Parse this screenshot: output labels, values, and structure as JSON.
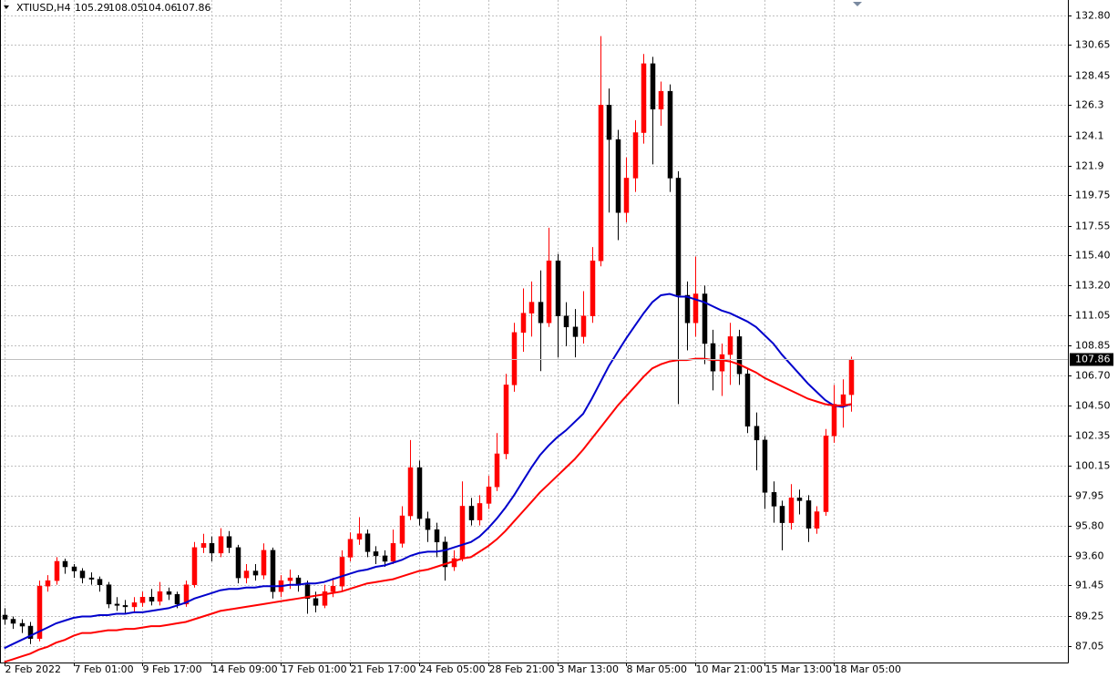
{
  "chart_data": {
    "type": "candlestick",
    "symbol": "XTIUSD,H4",
    "header_values": [
      105.29,
      108.05,
      104.06,
      107.86
    ],
    "up_color": "#ff0000",
    "down_color": "#000000",
    "grid": true,
    "current_price": 107.86,
    "xlim": [
      -1,
      246.2
    ],
    "ylim": [
      85.86,
      133.92
    ],
    "xticks": [
      {
        "value": 0,
        "label": "2 Feb 2022"
      },
      {
        "value": 16,
        "label": "7 Feb 01:00"
      },
      {
        "value": 32,
        "label": "9 Feb 17:00"
      },
      {
        "value": 48,
        "label": "14 Feb 09:00"
      },
      {
        "value": 64,
        "label": "17 Feb 01:00"
      },
      {
        "value": 80,
        "label": "21 Feb 17:00"
      },
      {
        "value": 96,
        "label": "24 Feb 05:00"
      },
      {
        "value": 112,
        "label": "28 Feb 21:00"
      },
      {
        "value": 128,
        "label": "3 Mar 13:00"
      },
      {
        "value": 144,
        "label": "8 Mar 05:00"
      },
      {
        "value": 160,
        "label": "10 Mar 21:00"
      },
      {
        "value": 176,
        "label": "15 Mar 13:00"
      },
      {
        "value": 192,
        "label": "18 Mar 05:00"
      }
    ],
    "yticks": [
      {
        "value": 132.8,
        "label": "132.80"
      },
      130.65,
      128.45,
      126.3,
      124.1,
      121.9,
      119.75,
      117.55,
      {
        "value": 115.4,
        "label": "115.40"
      },
      {
        "value": 113.2,
        "label": "113.20"
      },
      111.05,
      108.85,
      {
        "value": 106.7,
        "label": "106.70"
      },
      {
        "value": 104.5,
        "label": "104.50"
      },
      102.35,
      100.15,
      97.95,
      {
        "value": 95.8,
        "label": "95.80"
      },
      {
        "value": 93.6,
        "label": "93.60"
      },
      91.45,
      89.25,
      87.05
    ],
    "x": [
      0,
      2,
      4,
      6,
      8,
      10,
      12,
      14,
      16,
      18,
      20,
      22,
      24,
      26,
      28,
      30,
      32,
      34,
      36,
      38,
      40,
      42,
      44,
      46,
      48,
      50,
      52,
      54,
      56,
      58,
      60,
      62,
      64,
      66,
      68,
      70,
      72,
      74,
      76,
      78,
      80,
      82,
      84,
      86,
      88,
      90,
      92,
      94,
      96,
      98,
      100,
      102,
      104,
      106,
      108,
      110,
      112,
      114,
      116,
      118,
      120,
      122,
      124,
      126,
      128,
      130,
      132,
      134,
      136,
      138,
      140,
      142,
      144,
      146,
      148,
      150,
      152,
      154,
      156,
      158,
      160,
      162,
      164,
      166,
      168,
      170,
      172,
      174,
      176,
      178,
      180,
      182,
      184,
      186,
      188,
      190,
      192,
      194,
      196
    ],
    "open": [
      89.3,
      89.0,
      88.7,
      88.5,
      87.6,
      91.4,
      91.8,
      93.2,
      92.8,
      92.5,
      92.0,
      91.9,
      91.5,
      90.1,
      90.0,
      89.9,
      90.2,
      90.6,
      90.3,
      91.0,
      90.8,
      90.1,
      91.5,
      94.2,
      94.5,
      93.8,
      95.0,
      94.2,
      92.0,
      92.5,
      92.2,
      94.0,
      91.0,
      91.8,
      92.0,
      91.5,
      90.5,
      90.0,
      91.0,
      91.4,
      93.5,
      94.8,
      95.2,
      93.9,
      93.6,
      93.2,
      94.5,
      96.5,
      100.0,
      96.3,
      95.5,
      94.6,
      92.8,
      93.4,
      97.2,
      96.2,
      97.4,
      98.6,
      101.0,
      106.0,
      109.8,
      111.2,
      112.0,
      110.5,
      115.0,
      111.0,
      110.2,
      109.5,
      111.0,
      115.0,
      126.3,
      123.8,
      118.5,
      121.0,
      124.3,
      129.3,
      126.0,
      127.3,
      121.0,
      112.5,
      110.5,
      112.6,
      109.0,
      107.0,
      108.2,
      109.5,
      106.8,
      103.0,
      102.0,
      98.2,
      97.2,
      96.0,
      97.8,
      97.6,
      95.6,
      96.8,
      102.3,
      104.6,
      105.29
    ],
    "high": [
      89.8,
      89.2,
      89.0,
      88.8,
      91.8,
      92.2,
      93.5,
      93.4,
      93.0,
      92.7,
      92.4,
      92.1,
      91.7,
      90.6,
      90.4,
      90.6,
      91.0,
      91.2,
      91.7,
      91.3,
      91.0,
      91.8,
      94.6,
      95.2,
      95.0,
      95.6,
      95.4,
      94.4,
      93.0,
      93.0,
      94.5,
      94.2,
      92.2,
      92.6,
      92.2,
      91.8,
      91.0,
      91.5,
      92.0,
      94.0,
      95.3,
      96.4,
      95.5,
      94.3,
      94.0,
      95.5,
      97.2,
      102.0,
      100.5,
      96.8,
      96.0,
      95.0,
      94.0,
      99.0,
      97.8,
      98.0,
      99.4,
      102.5,
      106.8,
      110.5,
      113.0,
      113.5,
      114.3,
      117.4,
      115.5,
      112.0,
      111.5,
      112.8,
      116.0,
      131.3,
      127.5,
      124.5,
      122.5,
      125.2,
      130.0,
      129.8,
      128.0,
      127.8,
      121.5,
      113.5,
      115.3,
      113.2,
      110.0,
      109.0,
      110.5,
      110.0,
      107.2,
      104.0,
      102.3,
      99.0,
      97.6,
      98.8,
      98.4,
      98.0,
      97.2,
      102.8,
      106.0,
      106.4,
      108.05
    ],
    "low": [
      88.6,
      88.3,
      88.0,
      87.2,
      87.4,
      91.0,
      91.5,
      92.3,
      92.0,
      91.6,
      91.5,
      91.0,
      89.8,
      89.6,
      89.4,
      89.5,
      89.9,
      90.0,
      90.0,
      90.4,
      89.8,
      89.9,
      91.3,
      93.8,
      93.2,
      93.5,
      93.8,
      91.6,
      91.6,
      91.8,
      91.9,
      90.5,
      90.6,
      91.2,
      91.0,
      89.4,
      89.5,
      89.8,
      90.6,
      91.0,
      93.2,
      94.4,
      93.5,
      93.0,
      92.8,
      93.0,
      94.2,
      96.2,
      95.8,
      94.6,
      93.5,
      91.8,
      92.5,
      93.2,
      95.8,
      95.8,
      97.0,
      98.3,
      100.6,
      105.5,
      108.4,
      109.5,
      107.0,
      110.2,
      108.0,
      108.8,
      108.0,
      109.0,
      110.5,
      114.6,
      118.5,
      116.5,
      117.8,
      120.0,
      123.5,
      122.0,
      124.8,
      120.0,
      104.6,
      108.5,
      109.5,
      107.5,
      105.6,
      105.2,
      106.0,
      106.0,
      102.5,
      99.8,
      97.0,
      96.0,
      94.0,
      95.5,
      96.6,
      94.6,
      95.2,
      96.5,
      101.8,
      102.9,
      104.06
    ],
    "close": [
      89.0,
      88.7,
      88.5,
      87.6,
      91.4,
      91.8,
      93.2,
      92.8,
      92.5,
      92.0,
      91.9,
      91.5,
      90.1,
      90.0,
      89.9,
      90.2,
      90.6,
      90.3,
      91.0,
      90.8,
      90.1,
      91.5,
      94.2,
      94.5,
      93.8,
      95.0,
      94.2,
      92.0,
      92.5,
      92.2,
      94.0,
      91.0,
      91.8,
      92.0,
      91.5,
      90.5,
      90.0,
      91.0,
      91.4,
      93.5,
      94.8,
      95.2,
      93.9,
      93.6,
      93.2,
      94.5,
      96.5,
      100.0,
      96.3,
      95.5,
      94.6,
      92.8,
      93.4,
      97.2,
      96.2,
      97.4,
      98.6,
      101.0,
      106.0,
      109.8,
      111.2,
      112.0,
      110.5,
      115.0,
      111.0,
      110.2,
      109.5,
      111.0,
      115.0,
      126.3,
      123.8,
      118.5,
      121.0,
      124.3,
      129.3,
      126.0,
      127.3,
      121.0,
      112.5,
      110.5,
      112.6,
      109.0,
      107.0,
      108.2,
      109.5,
      106.8,
      103.0,
      102.0,
      98.2,
      97.2,
      96.0,
      97.8,
      97.6,
      95.6,
      96.8,
      102.3,
      104.6,
      105.29,
      107.86
    ],
    "series": [
      {
        "color": "#0000cc",
        "values": [
          86.9,
          87.2,
          87.5,
          87.8,
          88.1,
          88.4,
          88.7,
          88.9,
          89.1,
          89.2,
          89.2,
          89.3,
          89.3,
          89.4,
          89.4,
          89.5,
          89.5,
          89.6,
          89.7,
          89.8,
          90.0,
          90.2,
          90.5,
          90.7,
          90.9,
          91.1,
          91.2,
          91.2,
          91.3,
          91.3,
          91.4,
          91.4,
          91.4,
          91.5,
          91.5,
          91.6,
          91.6,
          91.7,
          91.9,
          92.1,
          92.3,
          92.5,
          92.6,
          92.8,
          92.9,
          93.1,
          93.3,
          93.6,
          93.8,
          93.9,
          93.9,
          94.0,
          94.2,
          94.4,
          94.6,
          95.0,
          95.6,
          96.3,
          97.1,
          98.0,
          99.0,
          100.0,
          100.9,
          101.6,
          102.2,
          102.7,
          103.3,
          103.9,
          105.0,
          106.2,
          107.4,
          108.4,
          109.4,
          110.3,
          111.2,
          112.0,
          112.5,
          112.6,
          112.4,
          112.4,
          112.2,
          112.0,
          111.7,
          111.4,
          111.2,
          110.9,
          110.6,
          110.2,
          109.6,
          109.0,
          108.2,
          107.5,
          106.8,
          106.1,
          105.5,
          104.9,
          104.5,
          104.4,
          104.6
        ]
      },
      {
        "color": "#ff0000",
        "values": [
          85.9,
          86.1,
          86.3,
          86.5,
          86.8,
          87.0,
          87.3,
          87.5,
          87.8,
          88.0,
          88.0,
          88.1,
          88.2,
          88.2,
          88.3,
          88.3,
          88.4,
          88.5,
          88.5,
          88.6,
          88.7,
          88.8,
          89.0,
          89.2,
          89.4,
          89.6,
          89.7,
          89.8,
          89.9,
          90.0,
          90.1,
          90.2,
          90.3,
          90.4,
          90.5,
          90.6,
          90.7,
          90.8,
          90.9,
          91.0,
          91.2,
          91.4,
          91.6,
          91.7,
          91.8,
          91.9,
          92.1,
          92.3,
          92.5,
          92.6,
          92.8,
          93.0,
          93.2,
          93.4,
          93.5,
          93.9,
          94.3,
          94.8,
          95.4,
          96.1,
          96.8,
          97.5,
          98.2,
          98.8,
          99.4,
          100.0,
          100.6,
          101.3,
          102.1,
          102.9,
          103.7,
          104.5,
          105.2,
          105.9,
          106.6,
          107.2,
          107.5,
          107.7,
          107.8,
          107.8,
          107.9,
          107.9,
          107.8,
          107.8,
          107.7,
          107.5,
          107.2,
          106.9,
          106.5,
          106.2,
          105.9,
          105.6,
          105.3,
          105.0,
          104.8,
          104.6,
          104.5,
          104.5,
          104.6
        ]
      }
    ]
  }
}
